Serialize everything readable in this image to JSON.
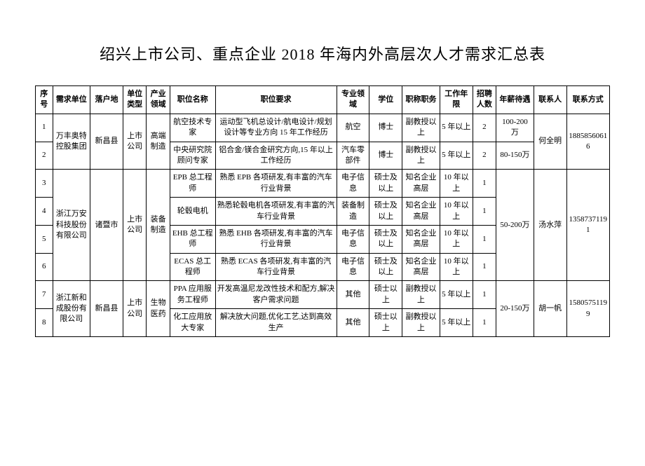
{
  "title": "绍兴上市公司、重点企业 2018 年海内外高层次人才需求汇总表",
  "headers": {
    "seq": "序号",
    "unit": "需求单位",
    "loc": "落户地",
    "type": "单位类型",
    "ind": "产业领域",
    "pos": "职位名称",
    "req": "职位要求",
    "field": "专业领域",
    "degree": "学位",
    "title": "职称职务",
    "exp": "工作年限",
    "num": "招聘人数",
    "salary": "年薪待遇",
    "contact": "联系人",
    "phone": "联系方式"
  },
  "rows": {
    "r1": {
      "seq": "1",
      "unit": "万丰奥特控股集团",
      "loc": "新昌县",
      "type": "上市公司",
      "ind": "高端制造",
      "pos": "航空技术专家",
      "req": "运动型飞机总设计/航电设计/规划设计等专业方向 15 年工作经历",
      "field": "航空",
      "degree": "博士",
      "title": "副教授以上",
      "exp": "5 年以上",
      "num": "2",
      "salary": "100-200 万",
      "contact": "何全明",
      "phone": "18858560616"
    },
    "r2": {
      "seq": "2",
      "pos": "中央研究院顾问专家",
      "req": "铝合金/镁合金研究方向,15 年以上工作经历",
      "field": "汽车零部件",
      "degree": "博士",
      "title": "副教授以上",
      "exp": "5 年以上",
      "num": "2",
      "salary": "80-150万"
    },
    "r3": {
      "seq": "3",
      "unit": "浙江万安科技股份有限公司",
      "loc": "诸暨市",
      "type": "上市公司",
      "ind": "装备制造",
      "pos": "EPB 总工程师",
      "req": "熟悉 EPB 各项研发,有丰富的汽车行业背景",
      "field": "电子信息",
      "degree": "硕士及以上",
      "title": "知名企业高层",
      "exp": "10 年以上",
      "num": "1",
      "salary": "50-200万",
      "contact": "汤水萍",
      "phone": "13587371191"
    },
    "r4": {
      "seq": "4",
      "pos": "轮毂电机",
      "req": "熟悉轮毂电机各项研发,有丰富的汽车行业背景",
      "field": "装备制造",
      "degree": "硕士及以上",
      "title": "知名企业高层",
      "exp": "10 年以上",
      "num": "1"
    },
    "r5": {
      "seq": "5",
      "pos": "EHB 总工程师",
      "req": "熟悉 EHB 各项研发,有丰富的汽车行业背景",
      "field": "电子信息",
      "degree": "硕士及以上",
      "title": "知名企业高层",
      "exp": "10 年以上",
      "num": "1"
    },
    "r6": {
      "seq": "6",
      "pos": "ECAS 总工程师",
      "req": "熟悉 ECAS 各项研发,有丰富的汽车行业背景",
      "field": "电子信息",
      "degree": "硕士及以上",
      "title": "知名企业高层",
      "exp": "10 年以上",
      "num": "1"
    },
    "r7": {
      "seq": "7",
      "unit": "浙江新和成股份有限公司",
      "loc": "新昌县",
      "type": "上市公司",
      "ind": "生物医药",
      "pos": "PPA 应用服务工程师",
      "req": "开发高温尼龙改性技术和配方,解决客户需求问题",
      "field": "其他",
      "degree": "硕士以上",
      "title": "副教授以上",
      "exp": "5 年以上",
      "num": "1",
      "salary": "20-150万",
      "contact": "胡一帆",
      "phone": "15805751199"
    },
    "r8": {
      "seq": "8",
      "pos": "化工应用放大专家",
      "req": "解决放大问题,优化工艺,达到高效生产",
      "field": "其他",
      "degree": "硕士以上",
      "title": "副教授以上",
      "exp": "5 年以上",
      "num": "1"
    }
  }
}
